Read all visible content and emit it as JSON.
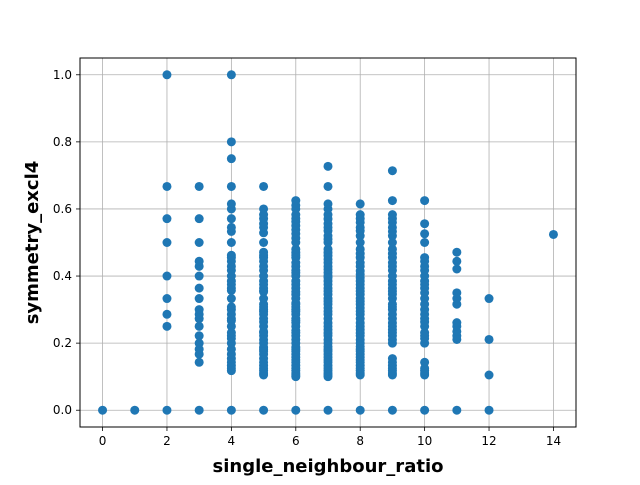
{
  "chart_data": {
    "type": "scatter",
    "title": "",
    "xlabel": "single_neighbour_ratio",
    "ylabel": "symmetry_excl4",
    "xlim": [
      -0.7,
      14.7
    ],
    "ylim": [
      -0.05,
      1.05
    ],
    "xticks": [
      0,
      2,
      4,
      6,
      8,
      10,
      12,
      14
    ],
    "yticks": [
      0.0,
      0.2,
      0.4,
      0.6,
      0.8,
      1.0
    ],
    "xtick_labels": [
      "0",
      "2",
      "4",
      "6",
      "8",
      "10",
      "12",
      "14"
    ],
    "ytick_labels": [
      "0.0",
      "0.2",
      "0.4",
      "0.6",
      "0.8",
      "1.0"
    ],
    "grid": true,
    "marker_color": "#1f77b4",
    "points_by_x": [
      {
        "x": 0,
        "y": [
          0.0
        ]
      },
      {
        "x": 1,
        "y": [
          0.0
        ]
      },
      {
        "x": 2,
        "y": [
          0.0,
          0.25,
          0.286,
          0.333,
          0.4,
          0.5,
          0.571,
          0.667,
          1.0
        ]
      },
      {
        "x": 3,
        "y": [
          0.0,
          0.143,
          0.167,
          0.182,
          0.2,
          0.222,
          0.25,
          0.273,
          0.286,
          0.3,
          0.333,
          0.364,
          0.4,
          0.429,
          0.444,
          0.5,
          0.571,
          0.667
        ]
      },
      {
        "x": 4,
        "y": [
          0.0,
          0.118,
          0.125,
          0.133,
          0.143,
          0.154,
          0.167,
          0.182,
          0.2,
          0.214,
          0.222,
          0.231,
          0.25,
          0.267,
          0.273,
          0.286,
          0.3,
          0.308,
          0.333,
          0.357,
          0.364,
          0.375,
          0.385,
          0.4,
          0.417,
          0.429,
          0.444,
          0.455,
          0.462,
          0.5,
          0.533,
          0.545,
          0.571,
          0.6,
          0.615,
          0.667,
          0.75,
          0.8,
          1.0
        ]
      },
      {
        "x": 5,
        "y": [
          0.0,
          0.105,
          0.111,
          0.118,
          0.125,
          0.133,
          0.143,
          0.154,
          0.167,
          0.176,
          0.182,
          0.188,
          0.2,
          0.21,
          0.222,
          0.231,
          0.235,
          0.25,
          0.263,
          0.273,
          0.286,
          0.294,
          0.3,
          0.308,
          0.316,
          0.333,
          0.353,
          0.357,
          0.364,
          0.375,
          0.385,
          0.4,
          0.417,
          0.429,
          0.444,
          0.455,
          0.462,
          0.471,
          0.5,
          0.529,
          0.545,
          0.556,
          0.571,
          0.583,
          0.6,
          0.667
        ]
      },
      {
        "x": 6,
        "y": [
          0.0,
          0.1,
          0.105,
          0.111,
          0.118,
          0.125,
          0.133,
          0.143,
          0.15,
          0.158,
          0.167,
          0.176,
          0.182,
          0.188,
          0.2,
          0.211,
          0.222,
          0.231,
          0.238,
          0.25,
          0.261,
          0.267,
          0.273,
          0.286,
          0.294,
          0.3,
          0.308,
          0.316,
          0.32,
          0.333,
          0.345,
          0.353,
          0.364,
          0.375,
          0.385,
          0.4,
          0.41,
          0.417,
          0.429,
          0.44,
          0.455,
          0.462,
          0.47,
          0.48,
          0.5,
          0.513,
          0.526,
          0.538,
          0.55,
          0.562,
          0.571,
          0.583,
          0.6,
          0.611,
          0.625
        ]
      },
      {
        "x": 7,
        "y": [
          0.0,
          0.1,
          0.105,
          0.111,
          0.118,
          0.125,
          0.133,
          0.143,
          0.15,
          0.158,
          0.167,
          0.176,
          0.182,
          0.19,
          0.2,
          0.21,
          0.222,
          0.23,
          0.24,
          0.25,
          0.26,
          0.273,
          0.286,
          0.295,
          0.305,
          0.316,
          0.325,
          0.333,
          0.345,
          0.355,
          0.364,
          0.375,
          0.385,
          0.395,
          0.4,
          0.41,
          0.42,
          0.429,
          0.44,
          0.45,
          0.46,
          0.47,
          0.48,
          0.5,
          0.51,
          0.52,
          0.535,
          0.545,
          0.556,
          0.57,
          0.583,
          0.6,
          0.615,
          0.667,
          0.727
        ]
      },
      {
        "x": 8,
        "y": [
          0.0,
          0.105,
          0.111,
          0.118,
          0.125,
          0.133,
          0.143,
          0.15,
          0.158,
          0.167,
          0.176,
          0.182,
          0.19,
          0.2,
          0.21,
          0.222,
          0.23,
          0.24,
          0.25,
          0.26,
          0.273,
          0.286,
          0.295,
          0.305,
          0.316,
          0.325,
          0.333,
          0.345,
          0.355,
          0.364,
          0.375,
          0.385,
          0.395,
          0.405,
          0.415,
          0.429,
          0.44,
          0.455,
          0.467,
          0.48,
          0.5,
          0.52,
          0.535,
          0.545,
          0.56,
          0.571,
          0.583,
          0.615
        ]
      },
      {
        "x": 9,
        "y": [
          0.0,
          0.105,
          0.111,
          0.118,
          0.125,
          0.133,
          0.143,
          0.154,
          0.2,
          0.21,
          0.222,
          0.231,
          0.24,
          0.25,
          0.26,
          0.273,
          0.286,
          0.3,
          0.308,
          0.316,
          0.333,
          0.346,
          0.355,
          0.364,
          0.375,
          0.385,
          0.4,
          0.417,
          0.429,
          0.44,
          0.455,
          0.467,
          0.48,
          0.5,
          0.52,
          0.533,
          0.545,
          0.56,
          0.571,
          0.583,
          0.625,
          0.714
        ]
      },
      {
        "x": 10,
        "y": [
          0.0,
          0.105,
          0.111,
          0.118,
          0.125,
          0.143,
          0.2,
          0.214,
          0.222,
          0.231,
          0.25,
          0.263,
          0.273,
          0.286,
          0.3,
          0.316,
          0.333,
          0.35,
          0.364,
          0.375,
          0.385,
          0.4,
          0.417,
          0.429,
          0.444,
          0.455,
          0.5,
          0.526,
          0.556,
          0.625
        ]
      },
      {
        "x": 11,
        "y": [
          0.0,
          0.211,
          0.222,
          0.235,
          0.25,
          0.261,
          0.316,
          0.333,
          0.35,
          0.421,
          0.444,
          0.471
        ]
      },
      {
        "x": 12,
        "y": [
          0.0,
          0.105,
          0.211,
          0.333
        ]
      },
      {
        "x": 14,
        "y": [
          0.524
        ]
      }
    ]
  }
}
